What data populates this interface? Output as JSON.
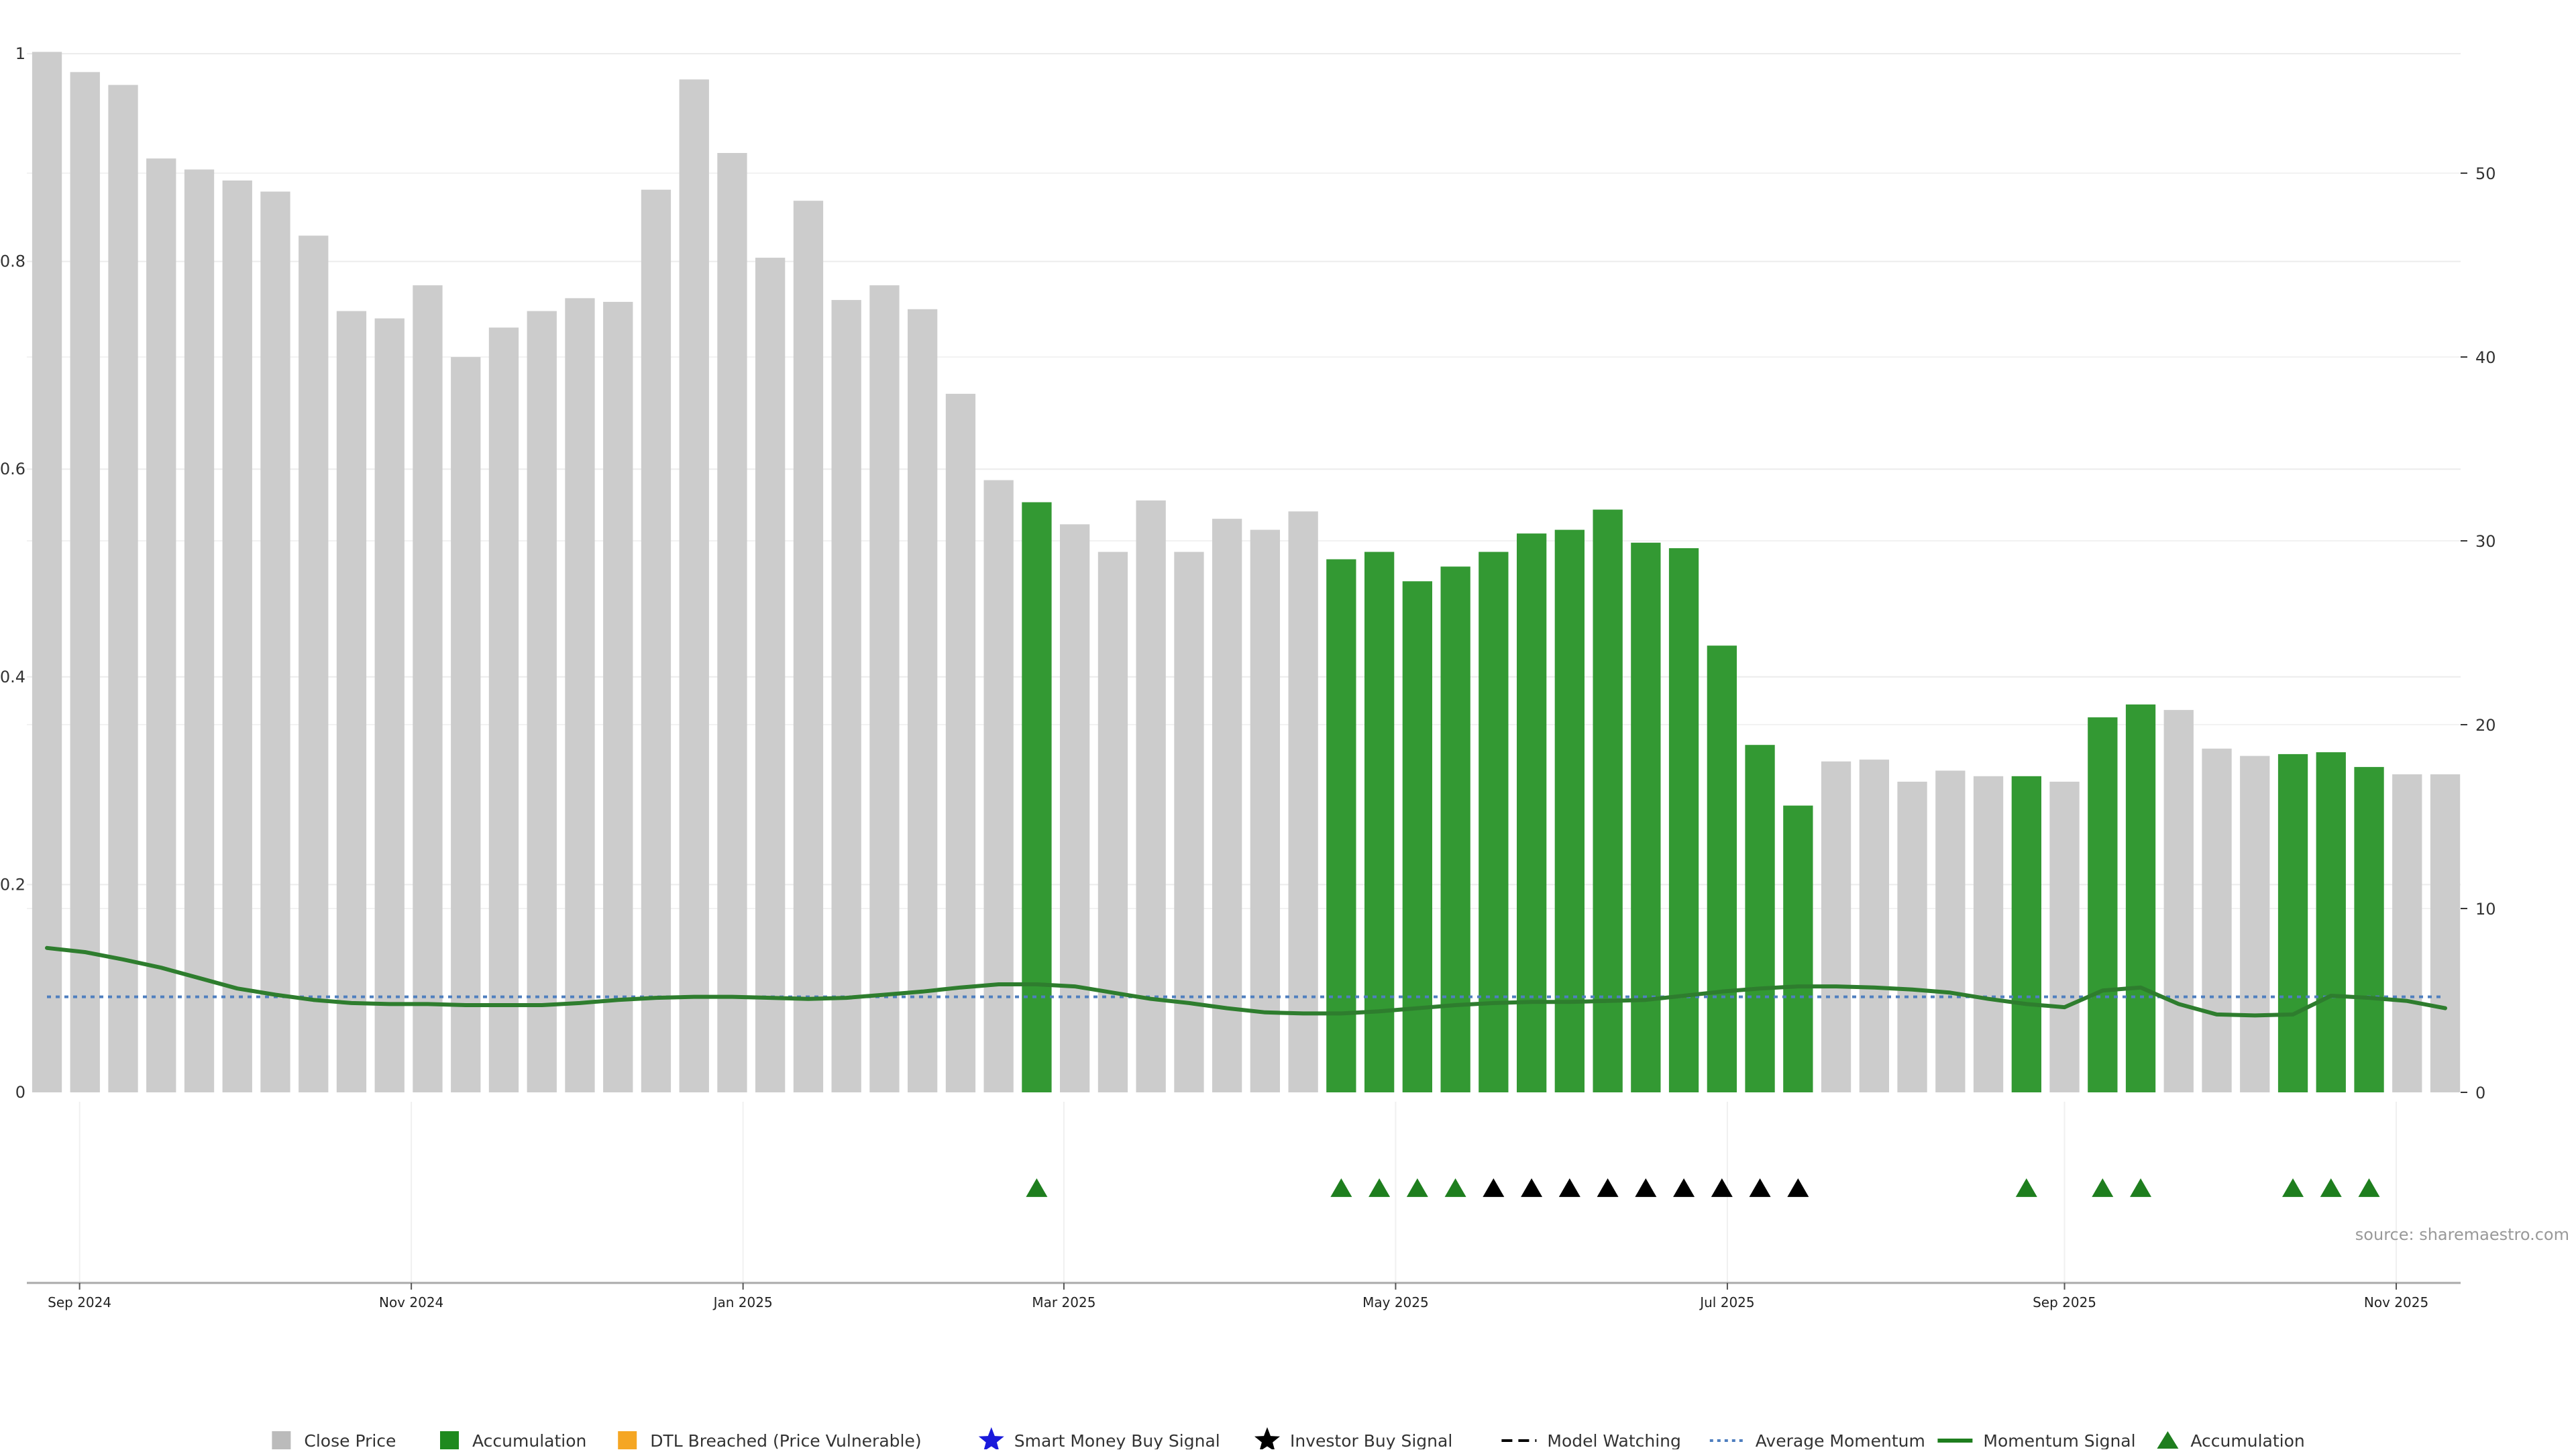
{
  "chart_data": {
    "type": "bar",
    "source_label": "source: sharemaestro.com",
    "colors": {
      "close_price": "#cccccc",
      "accumulation": "#339933",
      "dtl_breached": "#f5a623",
      "smart_money": "#1a1adb",
      "investor_buy": "#000000",
      "model_watching": "#000000",
      "average_momentum": "#4f7fbf",
      "momentum_signal": "#2e7d2e",
      "accumulation_marker": "#1e7e1e"
    },
    "left_axis": {
      "ylim": [
        0,
        1
      ],
      "ticks": [
        "0",
        "0.2",
        "0.4",
        "0.6",
        "0.8",
        "1"
      ]
    },
    "right_axis": {
      "ylim": [
        0,
        56.5
      ],
      "ticks": [
        "0",
        "10",
        "20",
        "30",
        "40",
        "50"
      ]
    },
    "x_ticks": [
      {
        "label": "Sep 2024",
        "date": "2024-09-01"
      },
      {
        "label": "Nov 2024",
        "date": "2024-11-01"
      },
      {
        "label": "Jan 2025",
        "date": "2025-01-01"
      },
      {
        "label": "Mar 2025",
        "date": "2025-03-01"
      },
      {
        "label": "May 2025",
        "date": "2025-05-01"
      },
      {
        "label": "Jul 2025",
        "date": "2025-07-01"
      },
      {
        "label": "Sep 2025",
        "date": "2025-09-01"
      },
      {
        "label": "Nov 2025",
        "date": "2025-11-01"
      }
    ],
    "x": [
      "2024-08-26",
      "2024-09-02",
      "2024-09-09",
      "2024-09-16",
      "2024-09-23",
      "2024-09-30",
      "2024-10-07",
      "2024-10-14",
      "2024-10-21",
      "2024-10-28",
      "2024-11-04",
      "2024-11-11",
      "2024-11-18",
      "2024-11-25",
      "2024-12-02",
      "2024-12-09",
      "2024-12-16",
      "2024-12-23",
      "2024-12-30",
      "2025-01-06",
      "2025-01-13",
      "2025-01-20",
      "2025-01-27",
      "2025-02-03",
      "2025-02-10",
      "2025-02-17",
      "2025-02-24",
      "2025-03-03",
      "2025-03-10",
      "2025-03-17",
      "2025-03-24",
      "2025-03-31",
      "2025-04-07",
      "2025-04-14",
      "2025-04-21",
      "2025-04-28",
      "2025-05-05",
      "2025-05-12",
      "2025-05-19",
      "2025-05-26",
      "2025-06-02",
      "2025-06-09",
      "2025-06-16",
      "2025-06-23",
      "2025-06-30",
      "2025-07-07",
      "2025-07-14",
      "2025-07-21",
      "2025-07-28",
      "2025-08-04",
      "2025-08-11",
      "2025-08-18",
      "2025-08-25",
      "2025-09-01",
      "2025-09-08",
      "2025-09-15",
      "2025-09-22",
      "2025-09-29",
      "2025-10-06",
      "2025-10-13",
      "2025-10-20",
      "2025-10-27",
      "2025-11-03",
      "2025-11-10"
    ],
    "close_price": [
      56.6,
      55.5,
      54.8,
      50.8,
      50.2,
      49.6,
      49.0,
      46.6,
      42.5,
      42.1,
      43.9,
      40.0,
      41.6,
      42.5,
      43.2,
      43.0,
      49.1,
      55.1,
      51.1,
      45.4,
      48.5,
      43.1,
      43.9,
      42.6,
      38.0,
      33.3,
      32.1,
      30.9,
      29.4,
      32.2,
      29.4,
      31.2,
      30.6,
      31.6,
      29.0,
      29.4,
      27.8,
      28.6,
      29.4,
      30.4,
      30.6,
      31.7,
      29.9,
      29.6,
      24.3,
      18.9,
      15.6,
      18.0,
      18.1,
      16.9,
      17.5,
      17.2,
      17.2,
      16.9,
      20.4,
      21.1,
      20.8,
      18.7,
      18.3,
      18.4,
      18.5,
      17.7,
      17.3,
      17.3
    ],
    "accumulation_flags": [
      0,
      0,
      0,
      0,
      0,
      0,
      0,
      0,
      0,
      0,
      0,
      0,
      0,
      0,
      0,
      0,
      0,
      0,
      0,
      0,
      0,
      0,
      0,
      0,
      0,
      0,
      1,
      0,
      0,
      0,
      0,
      0,
      0,
      0,
      1,
      1,
      1,
      1,
      1,
      1,
      1,
      1,
      1,
      1,
      1,
      1,
      1,
      0,
      0,
      0,
      0,
      0,
      1,
      0,
      1,
      1,
      0,
      0,
      0,
      1,
      1,
      1,
      0,
      0
    ],
    "momentum_signal": [
      0.139,
      0.135,
      0.128,
      0.12,
      0.11,
      0.1,
      0.094,
      0.089,
      0.086,
      0.085,
      0.085,
      0.084,
      0.084,
      0.084,
      0.086,
      0.089,
      0.091,
      0.092,
      0.092,
      0.091,
      0.09,
      0.091,
      0.094,
      0.097,
      0.101,
      0.104,
      0.104,
      0.102,
      0.096,
      0.09,
      0.086,
      0.081,
      0.077,
      0.076,
      0.076,
      0.078,
      0.081,
      0.084,
      0.086,
      0.087,
      0.087,
      0.088,
      0.089,
      0.093,
      0.097,
      0.1,
      0.102,
      0.102,
      0.101,
      0.099,
      0.096,
      0.09,
      0.085,
      0.082,
      0.098,
      0.101,
      0.085,
      0.075,
      0.074,
      0.075,
      0.093,
      0.091,
      0.088,
      0.081
    ],
    "average_momentum": 0.092,
    "accumulation_markers": [
      26,
      34,
      35,
      36,
      37,
      52,
      54,
      55,
      59,
      60,
      61
    ],
    "investor_buy_markers": [
      38,
      39,
      40,
      41,
      42,
      43,
      44,
      45,
      46
    ],
    "legend": [
      {
        "label": "Close Price",
        "symbol": "square",
        "color": "#bbbbbb"
      },
      {
        "label": "Accumulation",
        "symbol": "square",
        "color": "#1e8a1e"
      },
      {
        "label": "DTL Breached (Price Vulnerable)",
        "symbol": "square",
        "color": "#f5a623"
      },
      {
        "label": "Smart Money Buy Signal",
        "symbol": "star",
        "color": "#1a1adb"
      },
      {
        "label": "Investor Buy Signal",
        "symbol": "star",
        "color": "#000000"
      },
      {
        "label": "Model Watching",
        "symbol": "dash",
        "color": "#000000"
      },
      {
        "label": "Average Momentum",
        "symbol": "dotted",
        "color": "#4f7fbf"
      },
      {
        "label": "Momentum Signal",
        "symbol": "line",
        "color": "#1e7e1e"
      },
      {
        "label": "Accumulation",
        "symbol": "triangle",
        "color": "#1e7e1e"
      }
    ]
  }
}
